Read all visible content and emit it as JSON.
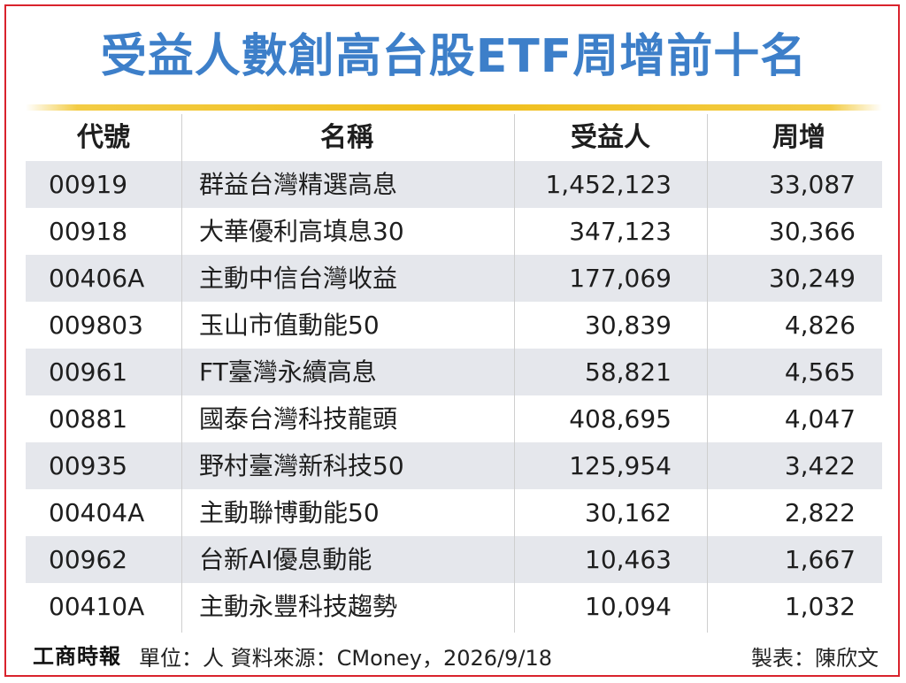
{
  "title": "受益人數創高台股ETF周增前十名",
  "colors": {
    "title": "#3d7fc9",
    "rule": "#f0be1a",
    "frame": "#d9232d",
    "row_shade": "#e5e7ec"
  },
  "chart_data": {
    "type": "table",
    "columns": [
      "代號",
      "名稱",
      "受益人",
      "周增"
    ],
    "rows": [
      [
        "00919",
        "群益台灣精選高息",
        "1,452,123",
        "33,087"
      ],
      [
        "00918",
        "大華優利高填息30",
        "347,123",
        "30,366"
      ],
      [
        "00406A",
        "主動中信台灣收益",
        "177,069",
        "30,249"
      ],
      [
        "009803",
        "玉山市值動能50",
        "30,839",
        "4,826"
      ],
      [
        "00961",
        "FT臺灣永續高息",
        "58,821",
        "4,565"
      ],
      [
        "00881",
        "國泰台灣科技龍頭",
        "408,695",
        "4,047"
      ],
      [
        "00935",
        "野村臺灣新科技50",
        "125,954",
        "3,422"
      ],
      [
        "00404A",
        "主動聯博動能50",
        "30,162",
        "2,822"
      ],
      [
        "00962",
        "台新AI優息動能",
        "10,463",
        "1,667"
      ],
      [
        "00410A",
        "主動永豐科技趨勢",
        "10,094",
        "1,032"
      ]
    ]
  },
  "footer": {
    "logo": "工商時報",
    "source": "單位：人  資料來源：CMoney，2026/9/18",
    "credit": "製表：陳欣文"
  }
}
